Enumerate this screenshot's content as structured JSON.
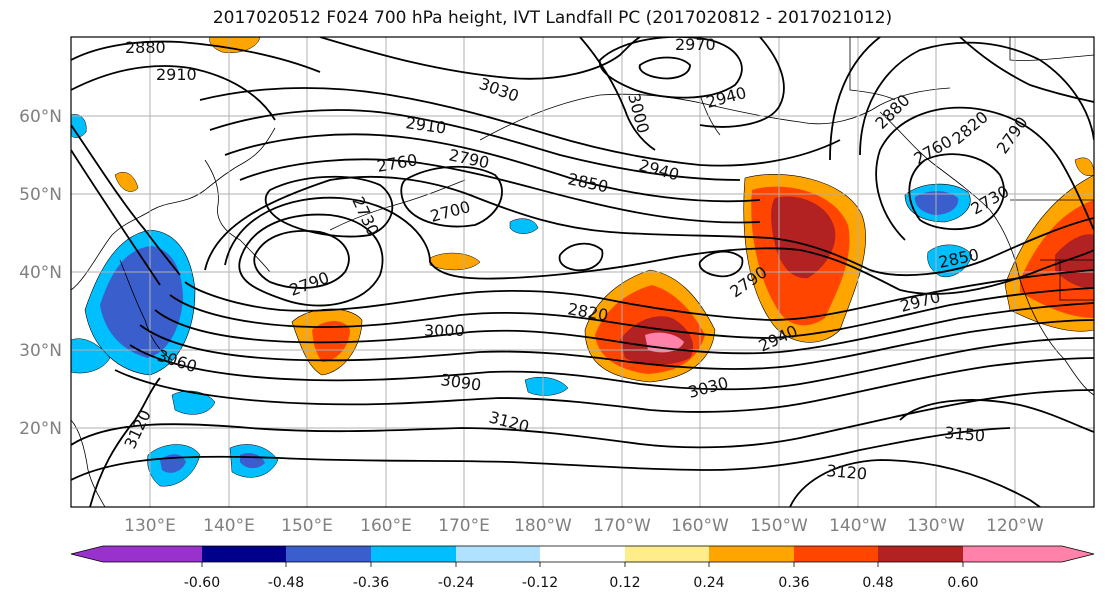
{
  "title": "2017020512 F024 700 hPa height, IVT Landfall PC (2017020812 - 2017021012)",
  "lat_labels": [
    "60°N",
    "50°N",
    "40°N",
    "30°N",
    "20°N"
  ],
  "lon_labels": [
    "130°E",
    "140°E",
    "150°E",
    "160°E",
    "170°E",
    "180°W",
    "170°W",
    "160°W",
    "150°W",
    "140°W",
    "130°W",
    "120°W"
  ],
  "contour_labels": [
    "2880",
    "2910",
    "3030",
    "2970",
    "3000",
    "2940",
    "2910",
    "2760",
    "2790",
    "2850",
    "2940",
    "2730",
    "2700",
    "2880",
    "2820",
    "2790",
    "2760",
    "2730",
    "2820",
    "2790",
    "2790",
    "2850",
    "2970",
    "3000",
    "3060",
    "3090",
    "3030",
    "2940",
    "3120",
    "3120",
    "3150",
    "3120"
  ],
  "colorbar": {
    "tick_labels": [
      "-0.60",
      "-0.48",
      "-0.36",
      "-0.24",
      "-0.12",
      "0.12",
      "0.24",
      "0.36",
      "0.48",
      "0.60"
    ],
    "colors": [
      "#9932cc",
      "#00008b",
      "#3a5fcd",
      "#00bfff",
      "#b0e2ff",
      "#ffffff",
      "#ffec8b",
      "#ffa500",
      "#ff4500",
      "#b22222",
      "#ff82ab"
    ]
  }
}
